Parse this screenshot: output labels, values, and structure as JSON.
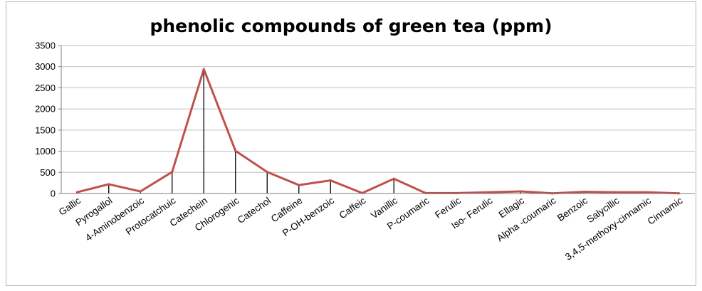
{
  "chart_data": {
    "type": "line",
    "title": "phenolic compounds of green tea (ppm)",
    "xlabel": "",
    "ylabel": "",
    "ylim": [
      0,
      3500
    ],
    "yticks": [
      0,
      500,
      1000,
      1500,
      2000,
      2500,
      3000,
      3500
    ],
    "grid": true,
    "legend": "none",
    "categories": [
      "Gallic",
      "Pyrogallol",
      "4-Aminobenzoic",
      "Protocatchuic",
      "Catechein",
      "Chlorogenic",
      "Catechol",
      "Caffeine",
      "P-OH-benzoic",
      "Caffeic",
      "Vanillic",
      "P-coumaric",
      "Ferulic",
      "Iso- Ferulic",
      "Ellagic",
      "Alpha -coumaric",
      "Benzoic",
      "Salycillic",
      "3,4,5-methoxy-cinnamic",
      "Cinnamic"
    ],
    "series": [
      {
        "values": [
          30,
          220,
          50,
          510,
          2940,
          1010,
          510,
          200,
          310,
          10,
          350,
          10,
          10,
          30,
          50,
          5,
          40,
          30,
          30,
          5
        ]
      }
    ],
    "colors": {
      "line": "#c0504d",
      "drop_lines": "#000000",
      "grid": "#bfbfbf"
    }
  }
}
